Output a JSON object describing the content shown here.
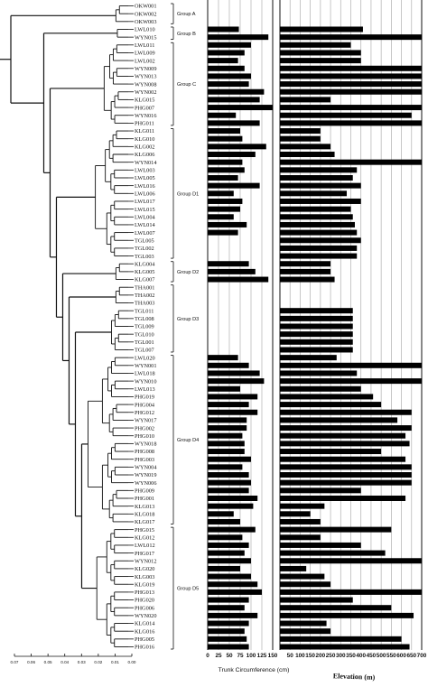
{
  "groups": [
    "Group A",
    "Group B",
    "Group C",
    "Group D1",
    "Group D2",
    "Group D3",
    "Group D4",
    "Group D5"
  ],
  "chart_data": [
    {
      "type": "bar",
      "panel": "trunk",
      "orientation": "horizontal",
      "xlabel": "Trunk Circumference (cm)",
      "xlim": [
        0,
        150
      ],
      "xticks": [
        "0",
        "25",
        "50",
        "75",
        "100",
        "125",
        "150"
      ],
      "grid": "vertical",
      "categories": [
        "OKW001",
        "OKW002",
        "OKW003",
        "LWL010",
        "WYN015",
        "LWL011",
        "LWL009",
        "LWL002",
        "WYN009",
        "WYN013",
        "WYN008",
        "WYN002",
        "KLG015",
        "PHG007",
        "WYN016",
        "PHG011",
        "KLG011",
        "KLG010",
        "KLG002",
        "KLG006",
        "WYN014",
        "LWL003",
        "LWL005",
        "LWL016",
        "LWL006",
        "LWL017",
        "LWL015",
        "LWL004",
        "LWL014",
        "LWL007",
        "TGL005",
        "TGL002",
        "TGL003",
        "KLG004",
        "KLG005",
        "KLG007",
        "THA001",
        "THA002",
        "THA003",
        "TGL011",
        "TGL008",
        "TGL009",
        "TGL010",
        "TGL001",
        "TGL007",
        "LWL020",
        "WYN001",
        "LWL018",
        "WYN010",
        "LWL013",
        "PHG019",
        "PHG004",
        "PHG012",
        "WYN017",
        "PHG002",
        "PHG010",
        "WYN018",
        "PHG008",
        "PHG003",
        "WYN004",
        "WYN019",
        "WYN006",
        "PHG009",
        "PHG001",
        "KLG013",
        "KLG018",
        "KLG017",
        "PHG015",
        "KLG012",
        "LWL012",
        "PHG017",
        "WYN012",
        "KLG020",
        "KLG003",
        "KLG019",
        "PHG013",
        "PHG020",
        "PHG006",
        "WYN020",
        "KLG014",
        "KLG016",
        "PHG005",
        "PHG016"
      ],
      "values": [
        null,
        null,
        null,
        72,
        140,
        100,
        85,
        70,
        85,
        100,
        95,
        130,
        120,
        150,
        65,
        120,
        75,
        80,
        135,
        110,
        80,
        85,
        70,
        120,
        60,
        80,
        75,
        60,
        90,
        70,
        null,
        null,
        null,
        95,
        110,
        140,
        null,
        null,
        null,
        null,
        null,
        null,
        null,
        null,
        null,
        70,
        95,
        120,
        130,
        75,
        115,
        95,
        115,
        90,
        90,
        80,
        85,
        85,
        100,
        80,
        95,
        100,
        95,
        115,
        105,
        60,
        75,
        110,
        80,
        95,
        85,
        100,
        75,
        100,
        115,
        125,
        95,
        85,
        115,
        95,
        85,
        90,
        95
      ]
    },
    {
      "type": "bar",
      "panel": "elevation",
      "orientation": "horizontal",
      "xlabel": "Elevation (m)",
      "xlim": [
        0,
        700
      ],
      "xticks": [
        "50",
        "100",
        "150",
        "200",
        "250",
        "300",
        "350",
        "400",
        "450",
        "500",
        "550",
        "600",
        "650",
        "700"
      ],
      "grid": "vertical",
      "categories": [
        "OKW001",
        "OKW002",
        "OKW003",
        "LWL010",
        "WYN015",
        "LWL011",
        "LWL009",
        "LWL002",
        "WYN009",
        "WYN013",
        "WYN008",
        "WYN002",
        "KLG015",
        "PHG007",
        "WYN016",
        "PHG011",
        "KLG011",
        "KLG010",
        "KLG002",
        "KLG006",
        "WYN014",
        "LWL003",
        "LWL005",
        "LWL016",
        "LWL006",
        "LWL017",
        "LWL015",
        "LWL004",
        "LWL014",
        "LWL007",
        "TGL005",
        "TGL002",
        "TGL003",
        "KLG004",
        "KLG005",
        "KLG007",
        "THA001",
        "THA002",
        "THA003",
        "TGL011",
        "TGL008",
        "TGL009",
        "TGL010",
        "TGL001",
        "TGL007",
        "LWL020",
        "WYN001",
        "LWL018",
        "WYN010",
        "LWL013",
        "PHG019",
        "PHG004",
        "PHG012",
        "WYN017",
        "PHG002",
        "PHG010",
        "WYN018",
        "PHG008",
        "PHG003",
        "WYN004",
        "WYN019",
        "WYN006",
        "PHG009",
        "PHG001",
        "KLG013",
        "KLG018",
        "KLG017",
        "PHG015",
        "KLG012",
        "LWL012",
        "PHG017",
        "WYN012",
        "KLG020",
        "KLG003",
        "KLG019",
        "PHG013",
        "PHG020",
        "PHG006",
        "WYN020",
        "KLG014",
        "KLG016",
        "PHG005",
        "PHG016"
      ],
      "values": [
        null,
        null,
        null,
        410,
        700,
        350,
        400,
        400,
        700,
        700,
        700,
        700,
        250,
        700,
        650,
        700,
        200,
        200,
        250,
        270,
        700,
        380,
        360,
        400,
        330,
        400,
        350,
        360,
        370,
        380,
        400,
        380,
        380,
        250,
        250,
        270,
        null,
        null,
        null,
        360,
        360,
        360,
        360,
        360,
        360,
        280,
        700,
        380,
        700,
        400,
        460,
        500,
        650,
        580,
        650,
        620,
        640,
        500,
        620,
        650,
        650,
        650,
        400,
        620,
        220,
        150,
        200,
        550,
        200,
        400,
        520,
        700,
        130,
        220,
        250,
        700,
        360,
        550,
        660,
        230,
        250,
        600,
        640
      ]
    }
  ]
}
